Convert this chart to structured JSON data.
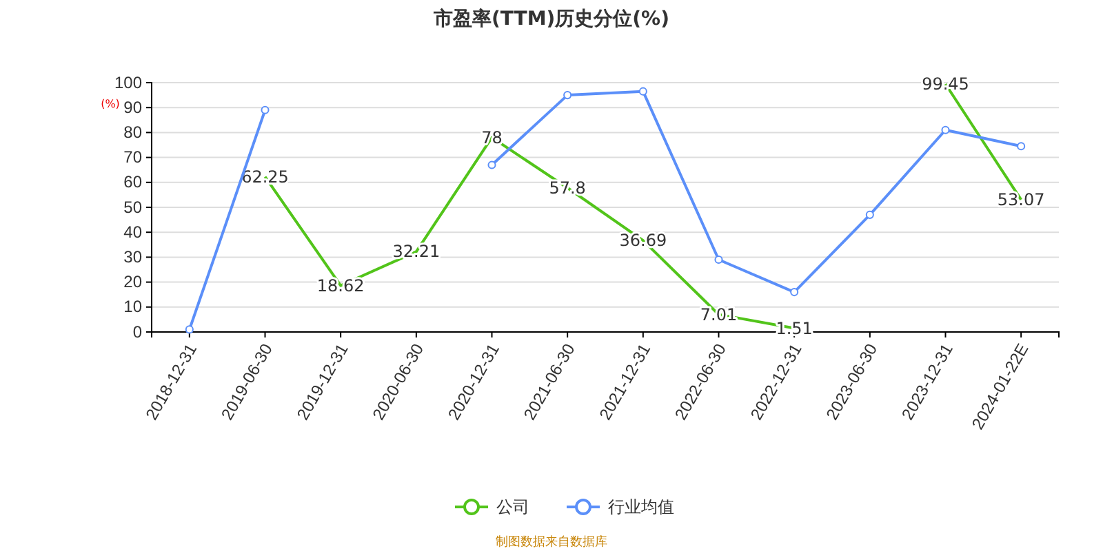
{
  "chart_data": {
    "type": "line",
    "title": "市盈率(TTM)历史分位(%)",
    "ylabel": "(%)",
    "categories": [
      "2018-12-31",
      "2019-06-30",
      "2019-12-31",
      "2020-06-30",
      "2020-12-31",
      "2021-06-30",
      "2021-12-31",
      "2022-06-30",
      "2022-12-31",
      "2023-06-30",
      "2023-12-31",
      "2024-01-22E"
    ],
    "series": [
      {
        "name": "公司",
        "color": "#52c41a",
        "marker": "none",
        "values": [
          null,
          62.25,
          18.62,
          32.21,
          78,
          57.8,
          36.69,
          7.01,
          1.51,
          null,
          99.45,
          53.07
        ],
        "value_labels": [
          null,
          "62.25",
          "18.62",
          "32.21",
          "78",
          "57.8",
          "36.69",
          "7.01",
          "1.51",
          null,
          "99.45",
          "53.07"
        ]
      },
      {
        "name": "行业均值",
        "color": "#5b8ff9",
        "marker": "circle",
        "values": [
          1,
          89,
          null,
          null,
          67,
          95,
          96.5,
          29,
          16,
          47,
          81,
          74.5
        ]
      }
    ],
    "ylim": [
      0,
      100
    ],
    "yticks": [
      0,
      10,
      20,
      30,
      40,
      50,
      60,
      70,
      80,
      90,
      100
    ],
    "grid": "y",
    "legend": "bottom",
    "annotations": [
      "制图数据来自数据库"
    ]
  }
}
